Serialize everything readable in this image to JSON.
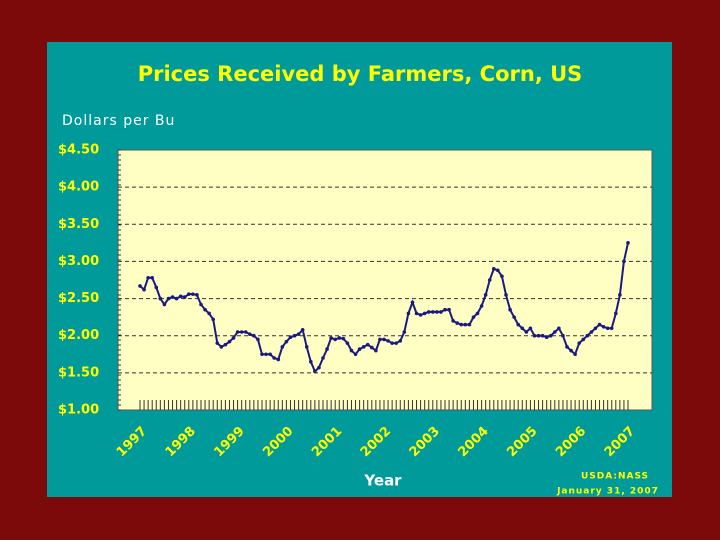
{
  "chart_data": {
    "type": "line",
    "title": "Prices Received by Farmers, Corn, US",
    "y_label": "Dollars per Bu",
    "x_label": "Year",
    "source": [
      "USDA:NASS",
      "January 31, 2007"
    ],
    "categories": [
      "1997",
      null,
      null,
      null,
      null,
      null,
      null,
      null,
      null,
      null,
      null,
      null,
      "1998",
      null,
      null,
      null,
      null,
      null,
      null,
      null,
      null,
      null,
      null,
      null,
      "1999",
      null,
      null,
      null,
      null,
      null,
      null,
      null,
      null,
      null,
      null,
      null,
      "2000",
      null,
      null,
      null,
      null,
      null,
      null,
      null,
      null,
      null,
      null,
      null,
      "2001",
      null,
      null,
      null,
      null,
      null,
      null,
      null,
      null,
      null,
      null,
      null,
      "2002",
      null,
      null,
      null,
      null,
      null,
      null,
      null,
      null,
      null,
      null,
      null,
      "2003",
      null,
      null,
      null,
      null,
      null,
      null,
      null,
      null,
      null,
      null,
      null,
      "2004",
      null,
      null,
      null,
      null,
      null,
      null,
      null,
      null,
      null,
      null,
      null,
      "2005",
      null,
      null,
      null,
      null,
      null,
      null,
      null,
      null,
      null,
      null,
      null,
      "2006",
      null,
      null,
      null,
      null,
      null,
      null,
      null,
      null,
      null,
      null,
      null,
      "2007"
    ],
    "values": [
      2.67,
      2.62,
      2.78,
      2.78,
      2.65,
      2.5,
      2.42,
      2.5,
      2.52,
      2.5,
      2.53,
      2.52,
      2.56,
      2.56,
      2.55,
      2.42,
      2.35,
      2.3,
      2.22,
      1.9,
      1.85,
      1.88,
      1.92,
      1.97,
      2.05,
      2.05,
      2.05,
      2.02,
      2.0,
      1.95,
      1.75,
      1.75,
      1.75,
      1.7,
      1.68,
      1.85,
      1.92,
      1.98,
      2.0,
      2.02,
      2.08,
      1.85,
      1.65,
      1.52,
      1.57,
      1.7,
      1.82,
      1.97,
      1.95,
      1.97,
      1.96,
      1.9,
      1.8,
      1.75,
      1.82,
      1.85,
      1.88,
      1.84,
      1.8,
      1.95,
      1.95,
      1.93,
      1.9,
      1.9,
      1.93,
      2.05,
      2.3,
      2.45,
      2.3,
      2.28,
      2.3,
      2.32,
      2.32,
      2.32,
      2.32,
      2.35,
      2.35,
      2.2,
      2.17,
      2.15,
      2.15,
      2.15,
      2.25,
      2.3,
      2.4,
      2.55,
      2.75,
      2.9,
      2.88,
      2.8,
      2.55,
      2.35,
      2.25,
      2.15,
      2.1,
      2.05,
      2.1,
      2.0,
      2.0,
      2.0,
      1.98,
      2.0,
      2.05,
      2.1,
      2.0,
      1.85,
      1.8,
      1.75,
      1.9,
      1.95,
      2.0,
      2.05,
      2.1,
      2.15,
      2.12,
      2.1,
      2.1,
      2.3,
      2.55,
      3.0,
      3.25
    ],
    "color": "#1a1a80",
    "ylim": [
      1,
      4.5
    ],
    "yticks": [
      {
        "value": 1,
        "label": "$1.00"
      },
      {
        "value": 1.5,
        "label": "$1.50"
      },
      {
        "value": 2,
        "label": "$2.00"
      },
      {
        "value": 2.5,
        "label": "$2.50"
      },
      {
        "value": 3,
        "label": "$3.00"
      },
      {
        "value": 3.5,
        "label": "$3.50"
      },
      {
        "value": 4,
        "label": "$4.00"
      },
      {
        "value": 4.5,
        "label": "$4.50"
      }
    ],
    "grid": true
  }
}
